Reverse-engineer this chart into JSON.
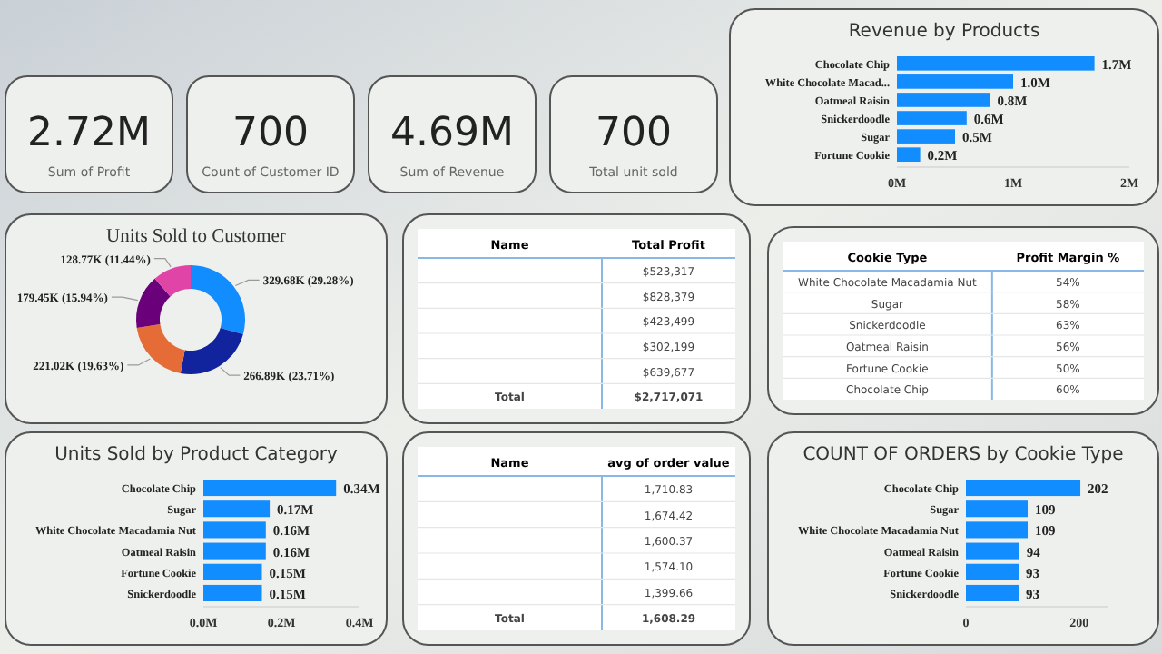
{
  "chart_data": [
    {
      "type": "other",
      "categories": [
        "Sum of Profit",
        "Count of Customer ID",
        "Sum of Revenue",
        "Total unit sold"
      ],
      "value_labels": [
        "2.72M",
        "700",
        "4.69M",
        "700"
      ]
    },
    {
      "type": "bar",
      "orientation": "horizontal",
      "title": "Revenue by Products",
      "categories": [
        "Chocolate Chip",
        "White Chocolate Macad...",
        "Oatmeal Raisin",
        "Snickerdoodle",
        "Sugar",
        "Fortune Cookie"
      ],
      "values": [
        1.7,
        1.0,
        0.8,
        0.6,
        0.5,
        0.2
      ],
      "value_labels": [
        "1.7M",
        "1.0M",
        "0.8M",
        "0.6M",
        "0.5M",
        "0.2M"
      ],
      "color": "#118dff",
      "xlim": [
        0,
        2
      ],
      "xticks": [
        {
          "value": 0,
          "label": "0M"
        },
        {
          "value": 1,
          "label": "1M"
        },
        {
          "value": 2,
          "label": "2M"
        }
      ]
    },
    {
      "type": "donut",
      "title": "Units Sold to Customer",
      "categories": [
        null,
        null,
        null,
        null,
        null
      ],
      "values": [
        329680,
        266890,
        221020,
        179450,
        128770
      ],
      "value_labels": [
        "329.68K (29.28%)",
        "266.89K (23.71%)",
        "221.02K (19.63%)",
        "179.45K (15.94%)",
        "128.77K (11.44%)"
      ],
      "colors": [
        "#118dff",
        "#12239e",
        "#e66c37",
        "#6b007b",
        "#e044a7"
      ]
    },
    {
      "type": "other",
      "xlabel": "Name",
      "ylabel": "Total Profit",
      "categories": [
        null,
        null,
        null,
        null,
        null,
        "Total"
      ],
      "value_labels": [
        "$523,317",
        "$828,379",
        "$423,499",
        "$302,199",
        "$639,677",
        "$2,717,071"
      ]
    },
    {
      "type": "other",
      "xlabel": "Cookie Type",
      "ylabel": "Profit Margin %",
      "categories": [
        "White Chocolate Macadamia Nut",
        "Sugar",
        "Snickerdoodle",
        "Oatmeal Raisin",
        "Fortune Cookie",
        "Chocolate Chip"
      ],
      "value_labels": [
        "54%",
        "58%",
        "63%",
        "56%",
        "50%",
        "60%"
      ]
    },
    {
      "type": "bar",
      "orientation": "horizontal",
      "title": "Units Sold by Product Category",
      "categories": [
        "Chocolate Chip",
        "Sugar",
        "White Chocolate Macadamia Nut",
        "Oatmeal Raisin",
        "Fortune Cookie",
        "Snickerdoodle"
      ],
      "values": [
        0.34,
        0.17,
        0.16,
        0.16,
        0.15,
        0.15
      ],
      "value_labels": [
        "0.34M",
        "0.17M",
        "0.16M",
        "0.16M",
        "0.15M",
        "0.15M"
      ],
      "color": "#118dff",
      "xlim": [
        0,
        0.4
      ],
      "xticks": [
        {
          "value": 0,
          "label": "0.0M"
        },
        {
          "value": 0.2,
          "label": "0.2M"
        },
        {
          "value": 0.4,
          "label": "0.4M"
        }
      ]
    },
    {
      "type": "other",
      "xlabel": "Name",
      "ylabel": "avg of order value",
      "categories": [
        null,
        null,
        null,
        null,
        null,
        "Total"
      ],
      "value_labels": [
        "1,710.83",
        "1,674.42",
        "1,600.37",
        "1,574.10",
        "1,399.66",
        "1,608.29"
      ]
    },
    {
      "type": "bar",
      "orientation": "horizontal",
      "title": "COUNT OF ORDERS by Cookie Type",
      "categories": [
        "Chocolate Chip",
        "Sugar",
        "White Chocolate Macadamia Nut",
        "Oatmeal Raisin",
        "Fortune Cookie",
        "Snickerdoodle"
      ],
      "values": [
        202,
        109,
        109,
        94,
        93,
        93
      ],
      "data_labels": true,
      "color": "#118dff",
      "xlim": [
        0,
        250
      ],
      "xticks": [
        0,
        200
      ]
    }
  ]
}
